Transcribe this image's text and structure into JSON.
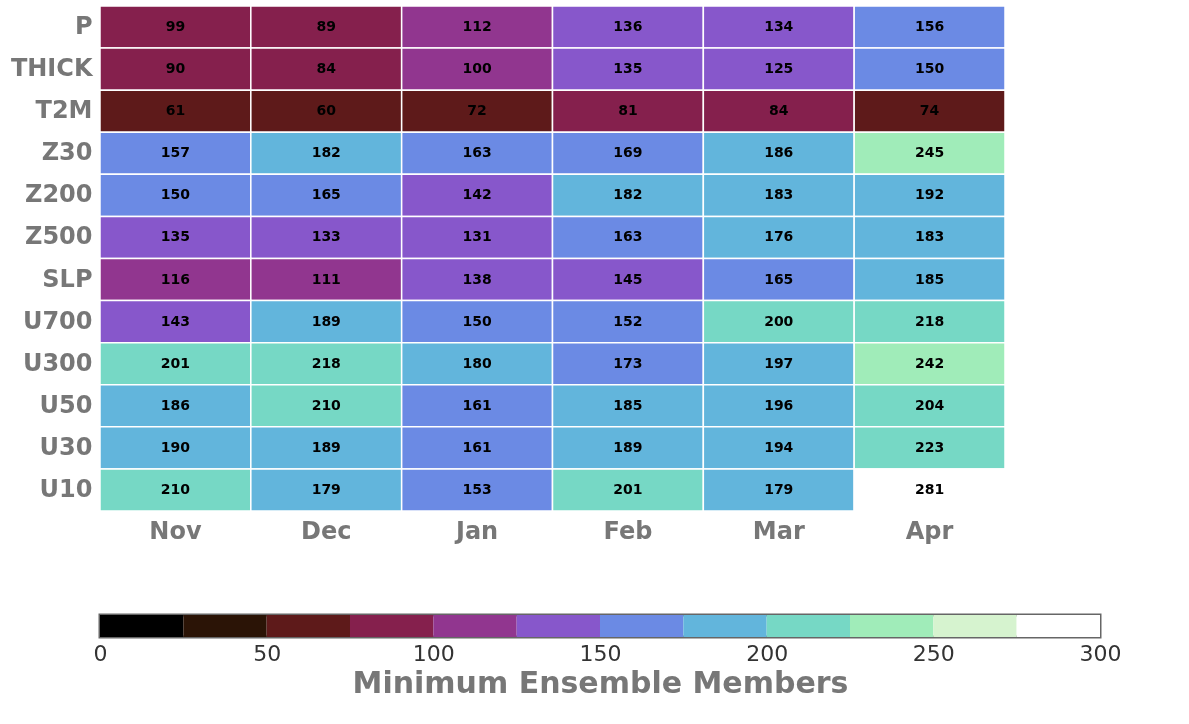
{
  "chart_data": {
    "type": "heatmap",
    "categories": [
      "Nov",
      "Dec",
      "Jan",
      "Feb",
      "Mar",
      "Apr"
    ],
    "y_categories": [
      "P",
      "THICK",
      "T2M",
      "Z30",
      "Z200",
      "Z500",
      "SLP",
      "U700",
      "U300",
      "U50",
      "U30",
      "U10"
    ],
    "cells": [
      [
        99,
        89,
        112,
        136,
        134,
        156
      ],
      [
        90,
        84,
        100,
        135,
        125,
        150
      ],
      [
        61,
        60,
        72,
        81,
        84,
        74
      ],
      [
        157,
        182,
        163,
        169,
        186,
        245
      ],
      [
        150,
        165,
        142,
        182,
        183,
        192
      ],
      [
        135,
        133,
        131,
        163,
        176,
        183
      ],
      [
        116,
        111,
        138,
        145,
        165,
        185
      ],
      [
        143,
        189,
        150,
        152,
        200,
        218
      ],
      [
        201,
        218,
        180,
        173,
        197,
        242
      ],
      [
        186,
        210,
        161,
        185,
        196,
        204
      ],
      [
        190,
        189,
        161,
        189,
        194,
        223
      ],
      [
        210,
        179,
        153,
        201,
        179,
        281
      ]
    ],
    "data_labels": true,
    "clim": [
      0,
      300
    ],
    "cticks": [
      0,
      50,
      100,
      150,
      200,
      250,
      300
    ],
    "clabel": "Minimum Ensemble Members",
    "colors": [
      "#000000",
      "#2b1406",
      "#5e1a1a",
      "#85204d",
      "#91368f",
      "#8757cb",
      "#6b8ae4",
      "#62b5dc",
      "#76d8c5",
      "#a0ecb9",
      "#d6f3cf",
      "#ffffff"
    ]
  }
}
